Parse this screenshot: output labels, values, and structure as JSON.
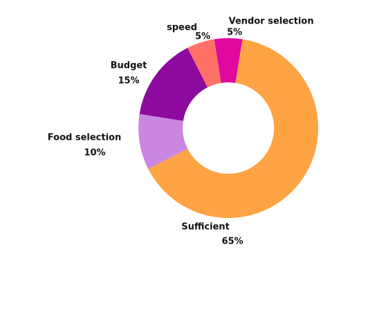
{
  "chart_data": {
    "type": "donut",
    "categories": [
      "Sufficient",
      "Food selection",
      "Budget",
      "speed",
      "Vendor selection"
    ],
    "values": [
      65,
      10,
      15,
      5,
      5
    ],
    "value_labels": [
      "65%",
      "10%",
      "15%",
      "5%",
      "5%"
    ],
    "colors": [
      "#ffa444",
      "#c987e0",
      "#8c0a9e",
      "#ff7066",
      "#e0079e"
    ]
  }
}
